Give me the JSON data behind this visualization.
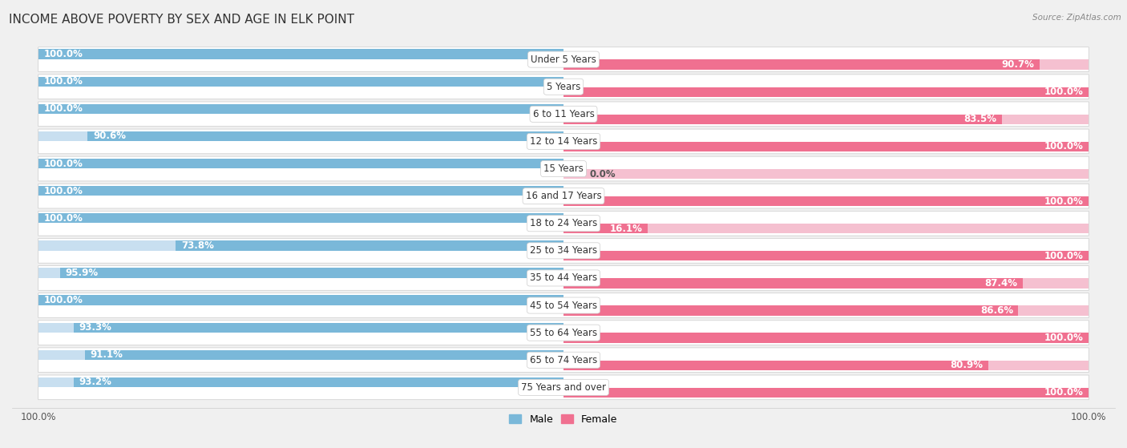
{
  "title": "INCOME ABOVE POVERTY BY SEX AND AGE IN ELK POINT",
  "source": "Source: ZipAtlas.com",
  "categories": [
    "Under 5 Years",
    "5 Years",
    "6 to 11 Years",
    "12 to 14 Years",
    "15 Years",
    "16 and 17 Years",
    "18 to 24 Years",
    "25 to 34 Years",
    "35 to 44 Years",
    "45 to 54 Years",
    "55 to 64 Years",
    "65 to 74 Years",
    "75 Years and over"
  ],
  "male": [
    100.0,
    100.0,
    100.0,
    90.6,
    100.0,
    100.0,
    100.0,
    73.8,
    95.9,
    100.0,
    93.3,
    91.1,
    93.2
  ],
  "female": [
    90.7,
    100.0,
    83.5,
    100.0,
    0.0,
    100.0,
    16.1,
    100.0,
    87.4,
    86.6,
    100.0,
    80.9,
    100.0
  ],
  "male_color": "#7ab8d9",
  "male_bg_color": "#c8dff0",
  "female_color": "#f07090",
  "female_bg_color": "#f5c0d0",
  "background_color": "#f0f0f0",
  "row_bg_color": "#ffffff",
  "title_fontsize": 11,
  "label_fontsize": 8.5,
  "category_fontsize": 8.5,
  "max_value": 100.0,
  "legend_male": "Male",
  "legend_female": "Female",
  "female_stub_value": 16.1
}
